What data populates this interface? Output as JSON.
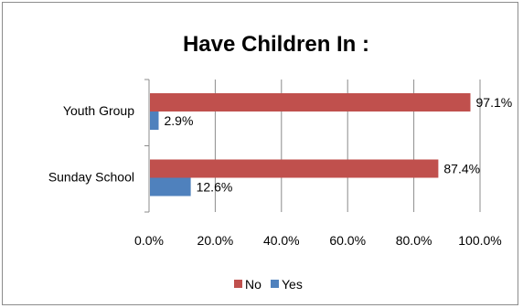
{
  "chart_data": {
    "type": "bar",
    "orientation": "horizontal",
    "title": "Have Children In :",
    "categories": [
      "Youth Group",
      "Sunday School"
    ],
    "series": [
      {
        "name": "No",
        "values": [
          97.1,
          87.4
        ],
        "labels": [
          "97.1%",
          "87.4%"
        ]
      },
      {
        "name": "Yes",
        "values": [
          2.9,
          12.6
        ],
        "labels": [
          "2.9%",
          "12.6%"
        ]
      }
    ],
    "xlim": [
      0,
      100
    ],
    "x_ticks": [
      0,
      20,
      40,
      60,
      80,
      100
    ],
    "x_tick_labels": [
      "0.0%",
      "20.0%",
      "40.0%",
      "60.0%",
      "80.0%",
      "100.0%"
    ],
    "grid": true,
    "legend": "bottom",
    "colors": {
      "No": "#c0504d",
      "Yes": "#4f81bd"
    }
  }
}
